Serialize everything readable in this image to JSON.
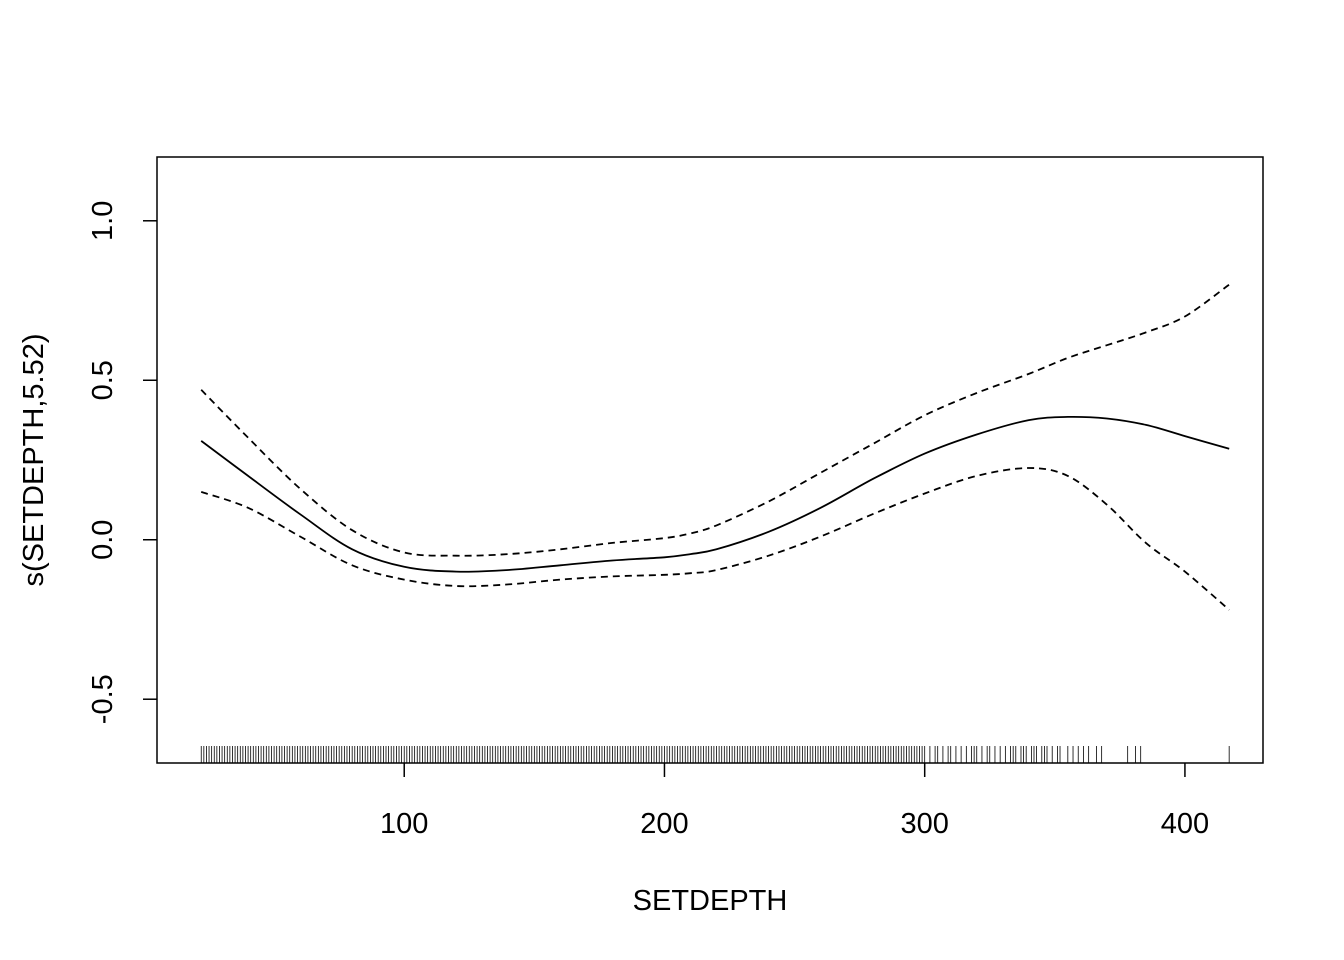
{
  "chart_data": {
    "type": "line",
    "xlabel": "SETDEPTH",
    "ylabel": "s(SETDEPTH,5.52)",
    "xlim": [
      5,
      430
    ],
    "ylim": [
      -0.7,
      1.2
    ],
    "xticks": [
      100,
      200,
      300,
      400
    ],
    "xtick_labels": [
      "100",
      "200",
      "300",
      "400"
    ],
    "yticks": [
      -0.5,
      0.0,
      0.5,
      1.0
    ],
    "ytick_labels": [
      "-0.5",
      "0.0",
      "0.5",
      "1.0"
    ],
    "grid": false,
    "legend": "none",
    "series": [
      {
        "role": "fit",
        "style": "solid",
        "x": [
          22,
          40,
          60,
          80,
          100,
          120,
          140,
          160,
          180,
          200,
          210,
          220,
          240,
          260,
          280,
          300,
          320,
          340,
          355,
          370,
          385,
          400,
          417
        ],
        "y": [
          0.31,
          0.2,
          0.08,
          -0.03,
          -0.085,
          -0.1,
          -0.095,
          -0.08,
          -0.065,
          -0.055,
          -0.045,
          -0.03,
          0.025,
          0.1,
          0.19,
          0.27,
          0.33,
          0.375,
          0.385,
          0.38,
          0.36,
          0.325,
          0.285
        ]
      },
      {
        "role": "upper-band",
        "style": "dashed",
        "x": [
          22,
          40,
          60,
          80,
          100,
          120,
          140,
          160,
          180,
          200,
          210,
          220,
          240,
          260,
          280,
          300,
          320,
          340,
          355,
          370,
          385,
          400,
          417
        ],
        "y": [
          0.47,
          0.32,
          0.16,
          0.03,
          -0.04,
          -0.05,
          -0.045,
          -0.03,
          -0.01,
          0.005,
          0.02,
          0.045,
          0.12,
          0.21,
          0.3,
          0.39,
          0.46,
          0.52,
          0.57,
          0.61,
          0.65,
          0.7,
          0.8
        ]
      },
      {
        "role": "lower-band",
        "style": "dashed",
        "x": [
          22,
          40,
          60,
          80,
          100,
          120,
          140,
          160,
          180,
          200,
          210,
          220,
          240,
          260,
          280,
          300,
          320,
          340,
          355,
          370,
          385,
          400,
          417
        ],
        "y": [
          0.15,
          0.1,
          0.01,
          -0.08,
          -0.125,
          -0.145,
          -0.14,
          -0.125,
          -0.115,
          -0.11,
          -0.105,
          -0.095,
          -0.05,
          0.01,
          0.08,
          0.145,
          0.2,
          0.225,
          0.2,
          0.11,
          -0.01,
          -0.1,
          -0.22
        ]
      }
    ],
    "rug": [
      22,
      23,
      24,
      25,
      26,
      27,
      28,
      29,
      30,
      31,
      32,
      33,
      34,
      35,
      36,
      37,
      38,
      39,
      40,
      41,
      42,
      43,
      44,
      45,
      46,
      47,
      48,
      49,
      50,
      51,
      52,
      53,
      54,
      55,
      56,
      57,
      58,
      59,
      60,
      61,
      62,
      63,
      64,
      65,
      66,
      67,
      68,
      69,
      70,
      71,
      72,
      73,
      74,
      75,
      76,
      77,
      78,
      79,
      80,
      81,
      82,
      83,
      84,
      85,
      86,
      87,
      88,
      89,
      90,
      91,
      92,
      93,
      94,
      95,
      96,
      97,
      98,
      99,
      100,
      101,
      102,
      103,
      104,
      105,
      106,
      107,
      108,
      109,
      110,
      111,
      112,
      113,
      114,
      115,
      116,
      117,
      118,
      119,
      120,
      121,
      122,
      123,
      124,
      125,
      126,
      127,
      128,
      129,
      130,
      131,
      132,
      133,
      134,
      135,
      136,
      137,
      138,
      139,
      140,
      141,
      142,
      143,
      144,
      145,
      146,
      147,
      148,
      149,
      150,
      151,
      152,
      153,
      154,
      155,
      156,
      157,
      158,
      159,
      160,
      161,
      162,
      163,
      164,
      165,
      166,
      167,
      168,
      169,
      170,
      171,
      172,
      173,
      174,
      175,
      176,
      177,
      178,
      179,
      180,
      181,
      182,
      183,
      184,
      185,
      186,
      187,
      188,
      189,
      190,
      191,
      192,
      193,
      194,
      195,
      196,
      197,
      198,
      199,
      200,
      201,
      202,
      203,
      204,
      205,
      206,
      207,
      208,
      209,
      210,
      211,
      212,
      213,
      214,
      215,
      216,
      217,
      218,
      219,
      220,
      221,
      222,
      223,
      224,
      225,
      226,
      227,
      228,
      229,
      230,
      231,
      232,
      233,
      234,
      235,
      236,
      237,
      238,
      239,
      240,
      241,
      242,
      243,
      244,
      245,
      246,
      247,
      248,
      249,
      250,
      251,
      252,
      253,
      254,
      255,
      256,
      257,
      258,
      259,
      260,
      261,
      262,
      263,
      264,
      265,
      266,
      267,
      268,
      269,
      270,
      271,
      272,
      273,
      274,
      275,
      276,
      277,
      278,
      279,
      280,
      281,
      282,
      283,
      284,
      285,
      286,
      287,
      288,
      289,
      290,
      291,
      292,
      293,
      294,
      295,
      296,
      297,
      298,
      299,
      300,
      302,
      304,
      305,
      307,
      309,
      310,
      312,
      314,
      316,
      318,
      319,
      320,
      322,
      324,
      325,
      327,
      329,
      331,
      333,
      334,
      335,
      337,
      338,
      339,
      341,
      342,
      343,
      345,
      346,
      347,
      349,
      351,
      352,
      355,
      357,
      359,
      361,
      363,
      366,
      368,
      378,
      381,
      383,
      417
    ]
  }
}
